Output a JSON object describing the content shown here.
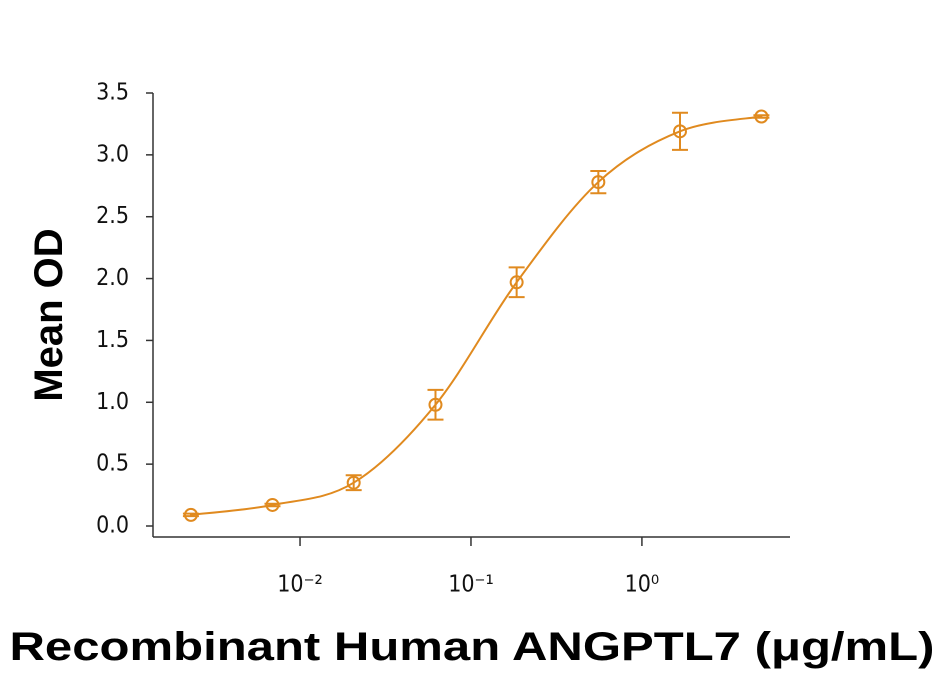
{
  "chart_data": {
    "type": "scatter",
    "xlabel": "Recombinant Human ANGPTL7 (μg/mL)",
    "ylabel": "Mean OD",
    "x": [
      0.0023,
      0.0069,
      0.0206,
      0.062,
      0.185,
      0.556,
      1.67,
      5.0
    ],
    "values": [
      0.09,
      0.17,
      0.35,
      0.98,
      1.97,
      2.78,
      3.19,
      3.31
    ],
    "errors": [
      0.01,
      0.01,
      0.06,
      0.12,
      0.12,
      0.09,
      0.15,
      0.01
    ],
    "color": "#e08a1f",
    "xscale": "log",
    "xlim": [
      0.00138,
      7.35
    ],
    "xticks": [
      {
        "value": 0.01,
        "label": "10⁻²"
      },
      {
        "value": 0.1,
        "label": "10⁻¹"
      },
      {
        "value": 1,
        "label": "10⁰"
      }
    ],
    "ylim": [
      0,
      3.5
    ],
    "yticks": [
      {
        "value": 0,
        "label": "0.0"
      },
      0.5,
      {
        "value": 1,
        "label": "1.0"
      },
      1.5,
      {
        "value": 2,
        "label": "2.0"
      },
      2.5,
      {
        "value": 3,
        "label": "3.0"
      },
      3.5
    ]
  }
}
